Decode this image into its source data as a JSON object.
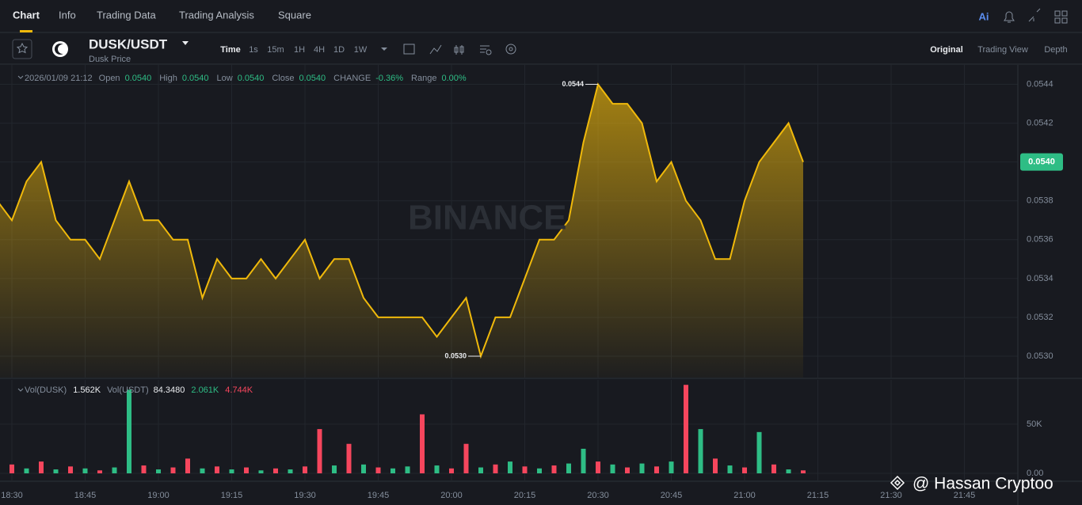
{
  "nav": {
    "tabs": [
      "Chart",
      "Info",
      "Trading Data",
      "Trading Analysis",
      "Square"
    ],
    "ai": "Ai"
  },
  "symbol": {
    "pair": "DUSK/USDT",
    "subtitle": "Dusk Price"
  },
  "intervals": [
    "Time",
    "1s",
    "15m",
    "1H",
    "4H",
    "1D",
    "1W"
  ],
  "views": [
    "Original",
    "Trading View",
    "Depth"
  ],
  "ohlc": {
    "date": "2026/01/09 21:12",
    "fields": [
      {
        "label": "Open",
        "value": "0.0540"
      },
      {
        "label": "High",
        "value": "0.0540"
      },
      {
        "label": "Low",
        "value": "0.0540"
      },
      {
        "label": "Close",
        "value": "0.0540"
      },
      {
        "label": "CHANGE",
        "value": "-0.36%"
      },
      {
        "label": "Range",
        "value": "0.00%"
      }
    ]
  },
  "volume_legend": {
    "label1": "Vol(DUSK)",
    "value1": "1.562K",
    "label2": "Vol(USDT)",
    "value2": "84.3480",
    "value3": "2.061K",
    "value4": "4.744K"
  },
  "watermark": "BINANCE",
  "credit": "@ Hassan Cryptoo",
  "chart_data": [
    {
      "type": "area",
      "color": "#f0b90b",
      "categories": [
        null,
        "18:30",
        null,
        null,
        null,
        null,
        "18:45",
        null,
        null,
        null,
        null,
        "19:00",
        null,
        null,
        null,
        null,
        "19:15",
        null,
        null,
        null,
        null,
        "19:30",
        null,
        null,
        null,
        null,
        "19:45",
        null,
        null,
        null,
        null,
        "20:00",
        null,
        null,
        null,
        null,
        "20:15",
        null,
        null,
        null,
        null,
        "20:30",
        null,
        null,
        null,
        null,
        "20:45",
        null,
        null,
        null,
        null,
        "21:00",
        null,
        null,
        null,
        null,
        "21:15",
        null,
        null,
        null,
        null,
        "21:30",
        null,
        null,
        null,
        null,
        "21:45",
        null,
        null,
        null,
        null
      ],
      "values": [
        0.0538,
        0.0537,
        0.0539,
        0.054,
        0.0537,
        0.0536,
        0.0536,
        0.0535,
        0.0537,
        0.0539,
        0.0537,
        0.0537,
        0.0536,
        0.0536,
        0.0533,
        0.0535,
        0.0534,
        0.0534,
        0.0535,
        0.0534,
        0.0535,
        0.0536,
        0.0534,
        0.0535,
        0.0535,
        0.0533,
        0.0532,
        0.0532,
        0.0532,
        0.0532,
        0.0531,
        0.0532,
        0.0533,
        0.053,
        0.0532,
        0.0532,
        0.0534,
        0.0536,
        0.0536,
        0.0537,
        0.0541,
        0.0544,
        0.0543,
        0.0543,
        0.0542,
        0.0539,
        0.054,
        0.0538,
        0.0537,
        0.0535,
        0.0535,
        0.0538,
        0.054,
        0.0541,
        0.0542,
        0.054,
        null,
        null,
        null,
        null,
        null,
        null,
        null,
        null,
        null,
        null,
        null,
        null,
        null,
        null,
        null
      ],
      "ylim": [
        0.05289,
        0.0545
      ],
      "yticks": [
        {
          "value": 0.053,
          "label": "0.0530"
        },
        {
          "value": 0.0532,
          "label": "0.0532"
        },
        {
          "value": 0.0534,
          "label": "0.0534"
        },
        {
          "value": 0.0536,
          "label": "0.0536"
        },
        {
          "value": 0.0538,
          "label": "0.0538"
        },
        {
          "value": 0.054,
          "label": "0.0540"
        },
        {
          "value": 0.0542,
          "label": "0.0542"
        },
        {
          "value": 0.0544,
          "label": "0.0544"
        }
      ],
      "annotations": [
        {
          "value": 0.0544,
          "label": "0.0544"
        },
        {
          "value": 0.053,
          "label": "0.0530"
        }
      ],
      "last": {
        "value": 0.054,
        "label": "0.0540",
        "color": "#2ebd85"
      },
      "grid": true
    },
    {
      "type": "bar",
      "values": [
        6000,
        9000,
        5000,
        12000,
        4000,
        7000,
        5000,
        3000,
        6000,
        85000,
        8000,
        4000,
        6000,
        15000,
        5000,
        7000,
        4000,
        6000,
        3000,
        5000,
        4000,
        7000,
        45000,
        8000,
        30000,
        9000,
        6000,
        5000,
        7000,
        60000,
        8000,
        5000,
        30000,
        6000,
        9000,
        12000,
        7000,
        5000,
        8000,
        10000,
        25000,
        12000,
        9000,
        6000,
        10000,
        7000,
        12000,
        90000,
        45000,
        15000,
        8000,
        6000,
        42000,
        9000,
        4000,
        3000,
        null,
        null,
        null,
        null,
        null,
        null,
        null,
        null,
        null,
        null,
        null,
        null,
        null,
        null,
        null
      ],
      "colors": [
        "#2ebd85",
        "#f6465d",
        "#2ebd85",
        "#f6465d",
        "#2ebd85",
        "#f6465d",
        "#2ebd85",
        "#f6465d",
        "#2ebd85",
        "#2ebd85",
        "#f6465d",
        "#2ebd85",
        "#f6465d",
        "#f6465d",
        "#2ebd85",
        "#f6465d",
        "#2ebd85",
        "#f6465d",
        "#2ebd85",
        "#f6465d",
        "#2ebd85",
        "#f6465d",
        "#f6465d",
        "#2ebd85",
        "#f6465d",
        "#2ebd85",
        "#f6465d",
        "#2ebd85",
        "#2ebd85",
        "#f6465d",
        "#2ebd85",
        "#f6465d",
        "#f6465d",
        "#2ebd85",
        "#f6465d",
        "#2ebd85",
        "#f6465d",
        "#2ebd85",
        "#f6465d",
        "#2ebd85",
        "#2ebd85",
        "#f6465d",
        "#2ebd85",
        "#f6465d",
        "#2ebd85",
        "#f6465d",
        "#2ebd85",
        "#f6465d",
        "#2ebd85",
        "#f6465d",
        "#2ebd85",
        "#f6465d",
        "#2ebd85",
        "#f6465d",
        "#2ebd85",
        "#f6465d",
        null,
        null,
        null,
        null,
        null,
        null,
        null,
        null,
        null,
        null,
        null,
        null,
        null,
        null,
        null
      ],
      "ylim": [
        0,
        95000
      ],
      "yticks": [
        {
          "value": 0,
          "label": "0.00"
        },
        {
          "value": 50000,
          "label": "50K"
        }
      ]
    }
  ]
}
